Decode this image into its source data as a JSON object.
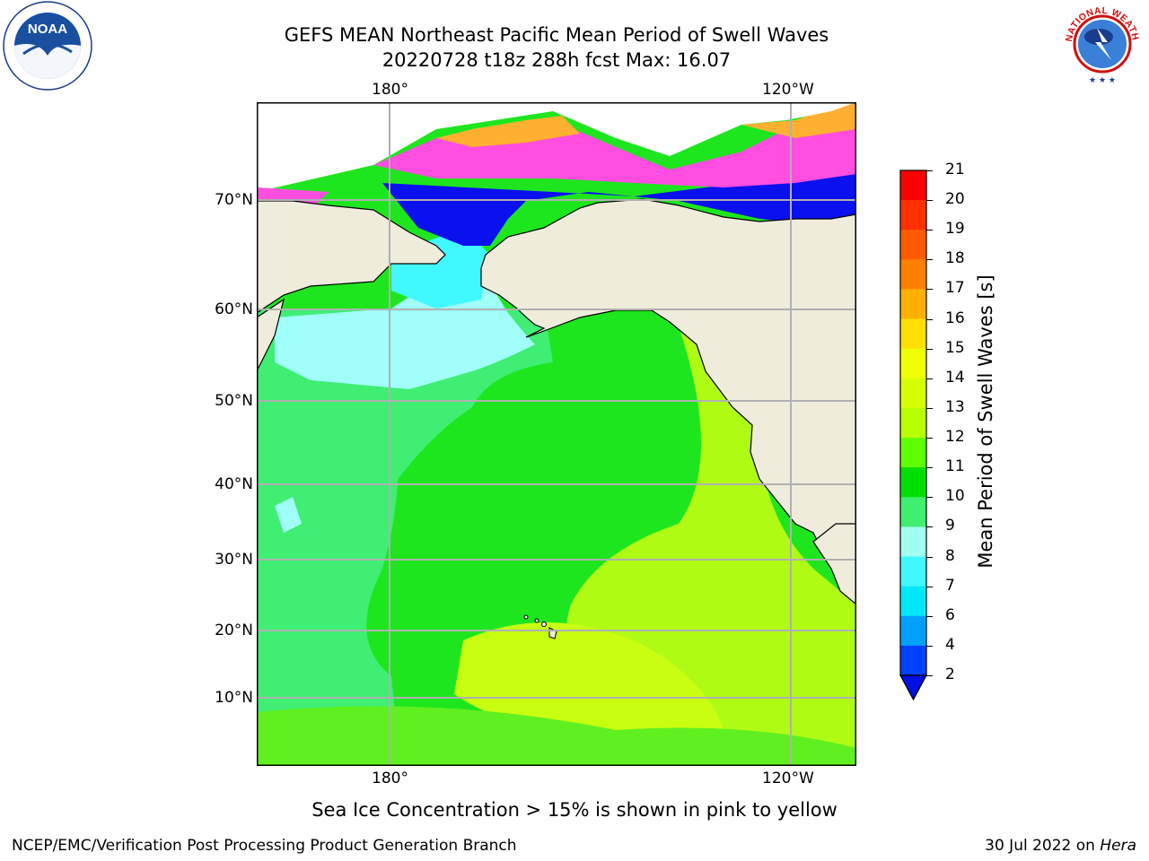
{
  "header": {
    "title_line1": "GEFS MEAN Northeast Pacific Mean Period of Swell Waves",
    "title_line2": "20220728 t18z 288h fcst   Max: 16.07",
    "left_logo_name": "NOAA",
    "left_logo_ring_text": "NATIONAL OCEANIC AND ATMOSPHERIC ADMINISTRATION · U.S. DEPARTMENT OF COMMERCE",
    "right_logo_ring_text": "NATIONAL WEATHER SERVICE"
  },
  "map": {
    "lon_labels_top": [
      "180°",
      "120°W"
    ],
    "lon_labels_bottom": [
      "180°",
      "120°W"
    ],
    "lat_labels": [
      "70°N",
      "60°N",
      "50°N",
      "40°N",
      "30°N",
      "20°N",
      "10°N"
    ]
  },
  "colorbar": {
    "label": "Mean Period of Swell Waves [s]",
    "ticks": [
      "21",
      "20",
      "19",
      "18",
      "17",
      "16",
      "15",
      "14",
      "13",
      "12",
      "11",
      "10",
      "9",
      "8",
      "7",
      "6",
      "4",
      "2"
    ],
    "colors": [
      "#ff0000",
      "#ff3000",
      "#ff5a00",
      "#ff8000",
      "#ffb000",
      "#ffe000",
      "#f0ff00",
      "#d8ff00",
      "#b8ff00",
      "#60ff00",
      "#00e000",
      "#40ee70",
      "#a0fff0",
      "#40f8ff",
      "#00e8ff",
      "#00a0ff",
      "#0040ff"
    ],
    "arrow_color": "#0010e0"
  },
  "note": "Sea Ice Concentration > 15% is shown in pink to yellow",
  "footer": {
    "left": "NCEP/EMC/Verification Post Processing Product Generation Branch",
    "date": "30 Jul 2022 on",
    "machine": "Hera"
  }
}
